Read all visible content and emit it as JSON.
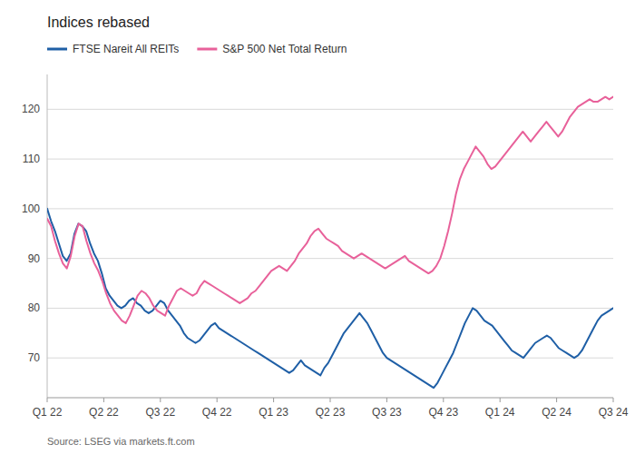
{
  "chart_data": {
    "type": "line",
    "title": "Indices rebased",
    "annotations": [
      "Source: LSEG via markets.ft.com"
    ],
    "xlim": [
      0,
      10
    ],
    "xticks": [
      {
        "value": 0,
        "label": "Q1 22"
      },
      {
        "value": 1,
        "label": "Q2 22"
      },
      {
        "value": 2,
        "label": "Q3 22"
      },
      {
        "value": 3,
        "label": "Q4 22"
      },
      {
        "value": 4,
        "label": "Q1 23"
      },
      {
        "value": 5,
        "label": "Q2 23"
      },
      {
        "value": 6,
        "label": "Q3 23"
      },
      {
        "value": 7,
        "label": "Q4 23"
      },
      {
        "value": 8,
        "label": "Q1 24"
      },
      {
        "value": 9,
        "label": "Q2 24"
      },
      {
        "value": 10,
        "label": "Q3 24"
      }
    ],
    "ylim": [
      62,
      127
    ],
    "yticks": [
      70,
      80,
      90,
      100,
      110,
      120
    ],
    "grid": true,
    "legend": "top-left",
    "series": [
      {
        "name": "FTSE Nareit All REITs",
        "color": "#1f5fa6",
        "values": [
          100.0,
          97.5,
          95.5,
          93.0,
          90.5,
          89.5,
          91.0,
          95.0,
          97.0,
          96.5,
          95.5,
          93.0,
          91.0,
          89.5,
          87.0,
          84.0,
          82.5,
          81.5,
          80.5,
          80.0,
          80.5,
          81.5,
          82.0,
          81.0,
          80.5,
          79.5,
          79.0,
          79.5,
          80.5,
          81.5,
          81.0,
          79.5,
          78.5,
          77.5,
          76.5,
          75.0,
          74.0,
          73.5,
          73.0,
          73.5,
          74.5,
          75.5,
          76.5,
          77.0,
          76.0,
          75.5,
          75.0,
          74.5,
          74.0,
          73.5,
          73.0,
          72.5,
          72.0,
          71.5,
          71.0,
          70.5,
          70.0,
          69.5,
          69.0,
          68.5,
          68.0,
          67.5,
          67.0,
          67.5,
          68.5,
          69.5,
          68.5,
          68.0,
          67.5,
          67.0,
          66.5,
          68.0,
          69.0,
          70.5,
          72.0,
          73.5,
          75.0,
          76.0,
          77.0,
          78.0,
          79.0,
          78.0,
          77.0,
          75.5,
          74.0,
          72.5,
          71.0,
          70.0,
          69.5,
          69.0,
          68.5,
          68.0,
          67.5,
          67.0,
          66.5,
          66.0,
          65.5,
          65.0,
          64.5,
          64.0,
          65.0,
          66.5,
          68.0,
          69.5,
          71.0,
          73.0,
          75.0,
          77.0,
          78.5,
          80.0,
          79.5,
          78.5,
          77.5,
          77.0,
          76.5,
          75.5,
          74.5,
          73.5,
          72.5,
          71.5,
          71.0,
          70.5,
          70.0,
          71.0,
          72.0,
          73.0,
          73.5,
          74.0,
          74.5,
          74.0,
          73.0,
          72.0,
          71.5,
          71.0,
          70.5,
          70.0,
          70.5,
          71.5,
          73.0,
          74.5,
          76.0,
          77.5,
          78.5,
          79.0,
          79.5,
          80.0
        ]
      },
      {
        "name": "S&P 500 Net Total Return",
        "color": "#e8619a",
        "values": [
          98.0,
          96.5,
          93.5,
          91.0,
          89.0,
          88.0,
          90.5,
          94.5,
          97.0,
          96.5,
          93.5,
          91.0,
          89.0,
          87.5,
          85.5,
          83.0,
          81.0,
          79.5,
          78.5,
          77.5,
          77.0,
          78.5,
          80.5,
          82.5,
          83.5,
          83.0,
          82.0,
          80.5,
          79.5,
          79.0,
          78.5,
          80.5,
          82.0,
          83.5,
          84.0,
          83.5,
          83.0,
          82.5,
          83.0,
          84.5,
          85.5,
          85.0,
          84.5,
          84.0,
          83.5,
          83.0,
          82.5,
          82.0,
          81.5,
          81.0,
          81.5,
          82.0,
          83.0,
          83.5,
          84.5,
          85.5,
          86.5,
          87.5,
          88.0,
          88.5,
          88.0,
          87.5,
          88.5,
          89.5,
          91.0,
          92.0,
          93.0,
          94.5,
          95.5,
          96.0,
          95.0,
          94.0,
          93.5,
          93.0,
          92.5,
          91.5,
          91.0,
          90.5,
          90.0,
          90.5,
          91.0,
          90.5,
          90.0,
          89.5,
          89.0,
          88.5,
          88.0,
          88.5,
          89.0,
          89.5,
          90.0,
          90.5,
          89.5,
          89.0,
          88.5,
          88.0,
          87.5,
          87.0,
          87.5,
          88.5,
          90.0,
          92.5,
          95.5,
          99.0,
          103.0,
          106.0,
          108.0,
          109.5,
          111.0,
          112.5,
          111.5,
          110.5,
          109.0,
          108.0,
          108.5,
          109.5,
          110.5,
          111.5,
          112.5,
          113.5,
          114.5,
          115.5,
          114.5,
          113.5,
          114.5,
          115.5,
          116.5,
          117.5,
          116.5,
          115.5,
          114.5,
          115.5,
          117.0,
          118.5,
          119.5,
          120.5,
          121.0,
          121.5,
          122.0,
          121.5,
          121.5,
          122.0,
          122.5,
          122.0,
          122.5
        ]
      }
    ]
  }
}
